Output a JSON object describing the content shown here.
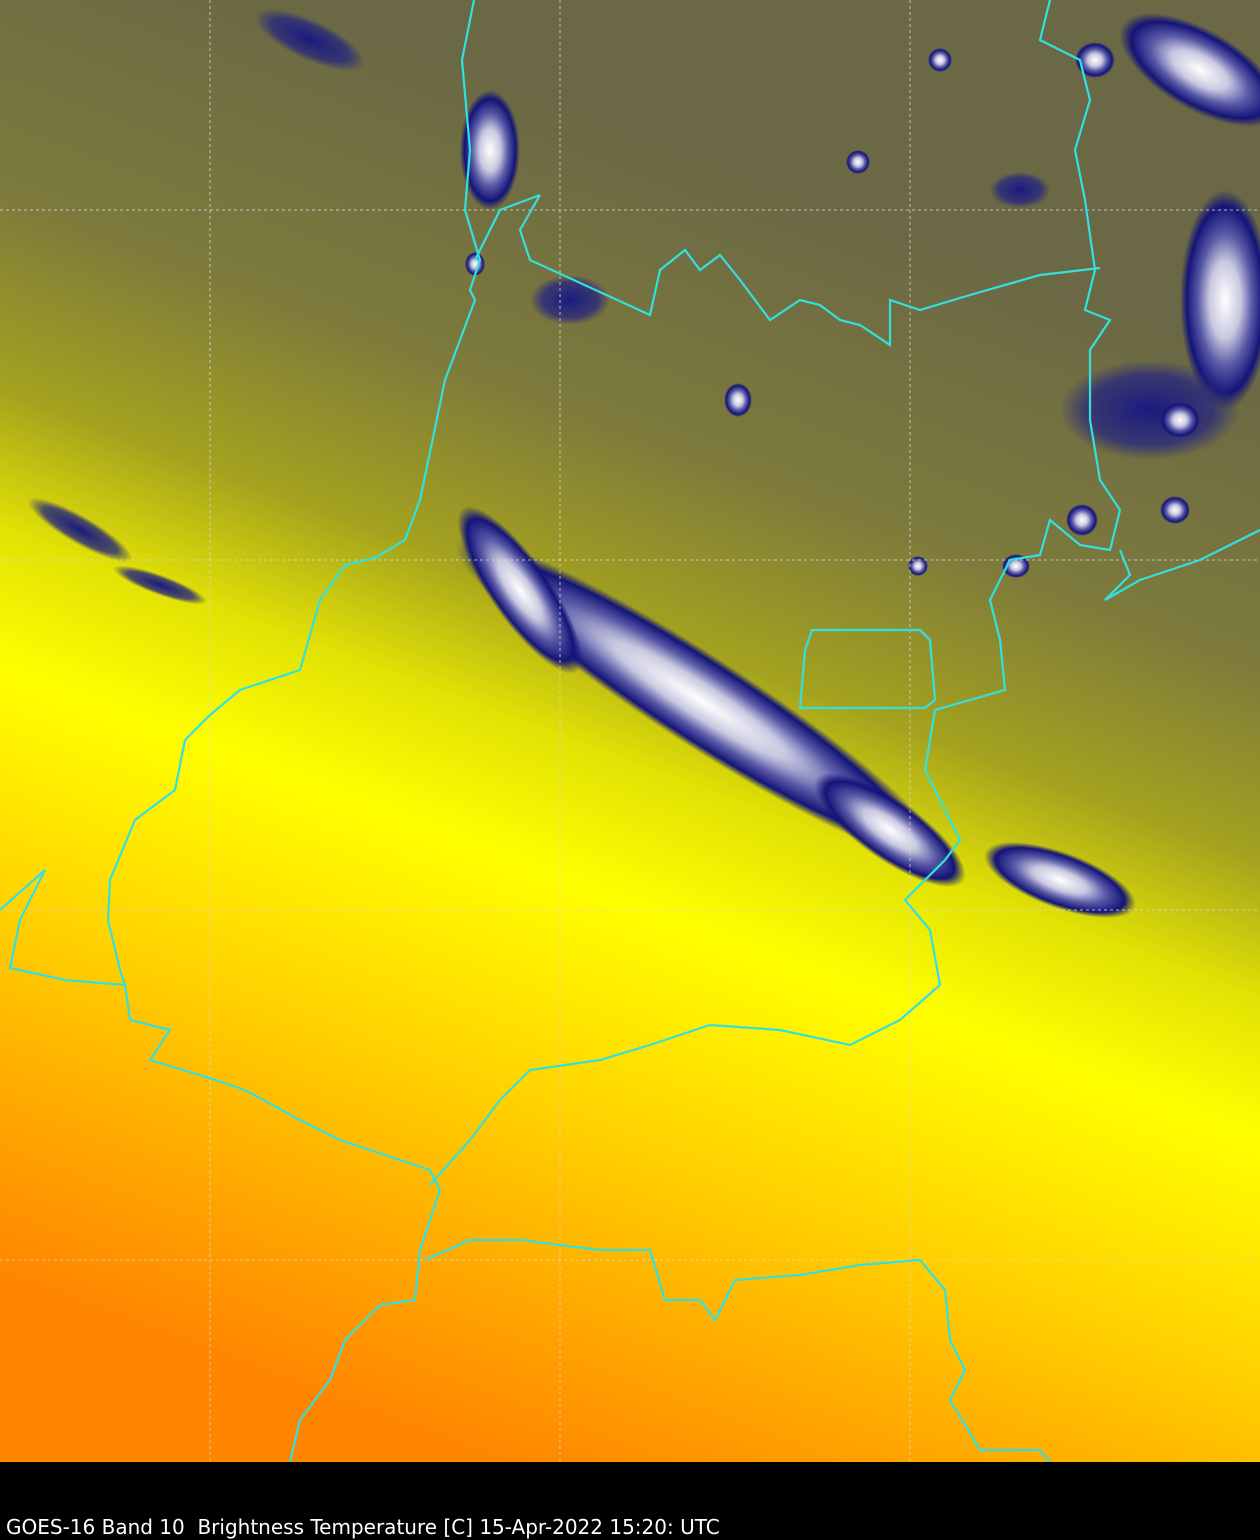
{
  "caption": "GOES-16 Band 10  Brightness Temperature [C] 15-Apr-2022 15:20: UTC"
}
